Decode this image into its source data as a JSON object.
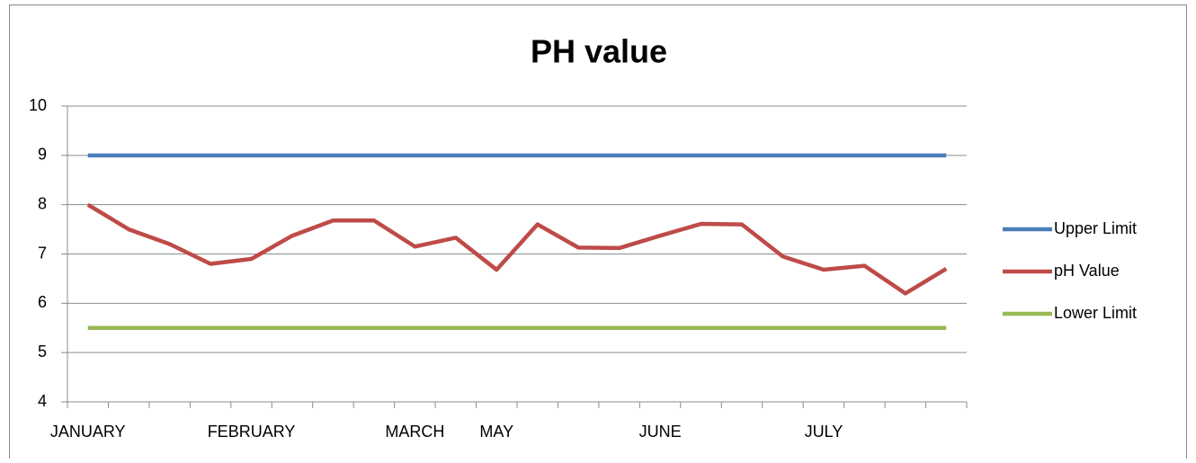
{
  "chart_data": {
    "type": "line",
    "title": "PH value",
    "categories": [
      "JANUARY",
      null,
      null,
      null,
      "FEBRUARY",
      null,
      null,
      null,
      "MARCH",
      null,
      "MAY",
      null,
      null,
      null,
      "JUNE",
      null,
      null,
      null,
      "JULY",
      null,
      null,
      null
    ],
    "series": [
      {
        "name": "Upper Limit",
        "color": "#4a7ebb",
        "values": [
          9,
          9,
          9,
          9,
          9,
          9,
          9,
          9,
          9,
          9,
          9,
          9,
          9,
          9,
          9,
          9,
          9,
          9,
          9,
          9,
          9,
          9
        ]
      },
      {
        "name": "pH Value",
        "color": "#be4b48",
        "values": [
          8.0,
          7.5,
          7.2,
          6.8,
          6.9,
          7.37,
          7.68,
          7.68,
          7.15,
          7.33,
          6.68,
          7.6,
          7.13,
          7.12,
          7.37,
          7.61,
          7.6,
          6.95,
          6.68,
          6.76,
          6.2,
          6.7
        ]
      },
      {
        "name": "Lower Limit",
        "color": "#98b954",
        "values": [
          5.5,
          5.5,
          5.5,
          5.5,
          5.5,
          5.5,
          5.5,
          5.5,
          5.5,
          5.5,
          5.5,
          5.5,
          5.5,
          5.5,
          5.5,
          5.5,
          5.5,
          5.5,
          5.5,
          5.5,
          5.5,
          5.5
        ]
      }
    ],
    "ylim": [
      4,
      10
    ],
    "yticks": [
      4,
      5,
      6,
      7,
      8,
      9,
      10
    ],
    "grid": true,
    "legend": "right"
  }
}
